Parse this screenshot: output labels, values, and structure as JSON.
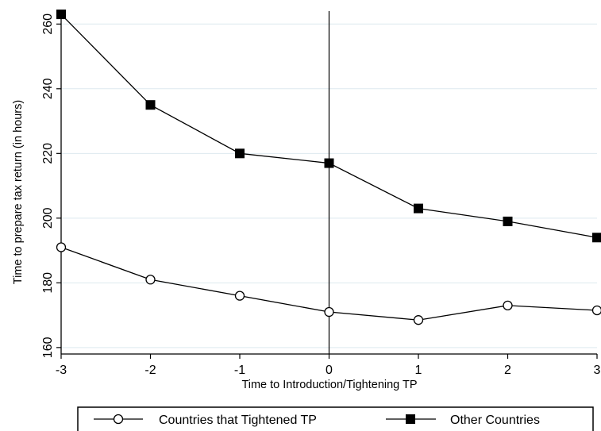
{
  "chart_data": {
    "type": "line",
    "xlabel": "Time to Introduction/Tightening TP",
    "ylabel": "Time to prepare tax return (in hours)",
    "x": [
      -3,
      -2,
      -1,
      0,
      1,
      2,
      3
    ],
    "xlim": [
      -3,
      3
    ],
    "ylim": [
      158,
      264
    ],
    "xticks": [
      "-3",
      "-2",
      "-1",
      "0",
      "1",
      "2",
      "3"
    ],
    "yticks": [
      "160",
      "180",
      "200",
      "220",
      "240",
      "260"
    ],
    "grid": true,
    "reference_line_x": 0,
    "legend_position": "bottom",
    "series": [
      {
        "name": "Countries that Tightened TP",
        "marker": "hollow-circle",
        "values": [
          191,
          181,
          176,
          171,
          168.5,
          173,
          171.5
        ]
      },
      {
        "name": "Other Countries",
        "marker": "filled-square",
        "values": [
          263,
          235,
          220,
          217,
          203,
          199,
          194
        ]
      }
    ],
    "colors": {
      "line": "#000000",
      "grid": "#dde9ef",
      "axis": "#000000"
    }
  }
}
